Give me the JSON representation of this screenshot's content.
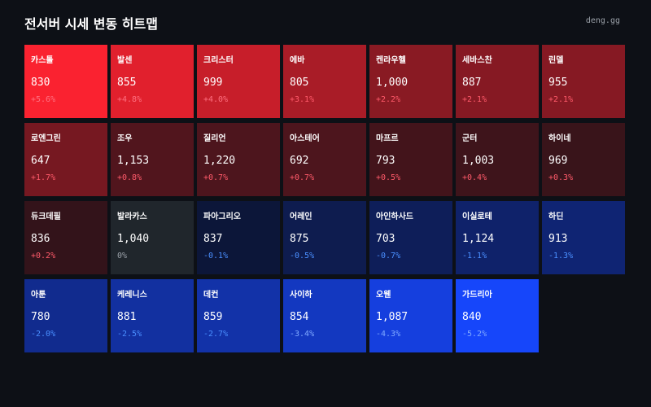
{
  "header": {
    "title": "전서버 시세 변동 히트맵",
    "brand": "deng.gg"
  },
  "colors": {
    "background": "#0d1016",
    "up_text": "#ff5a6a",
    "down_text": "#4a8fff",
    "flat_text": "#9aa0a8"
  },
  "chart_data": {
    "type": "heatmap",
    "title": "전서버 시세 변동 히트맵",
    "columns": 7,
    "cells": [
      {
        "name": "카스톨",
        "price": "830",
        "change": "+5.6%",
        "value": 5.6
      },
      {
        "name": "발센",
        "price": "855",
        "change": "+4.8%",
        "value": 4.8
      },
      {
        "name": "크리스터",
        "price": "999",
        "change": "+4.0%",
        "value": 4.0
      },
      {
        "name": "에바",
        "price": "805",
        "change": "+3.1%",
        "value": 3.1
      },
      {
        "name": "켄라우헬",
        "price": "1,000",
        "change": "+2.2%",
        "value": 2.2
      },
      {
        "name": "세바스찬",
        "price": "887",
        "change": "+2.1%",
        "value": 2.1
      },
      {
        "name": "린델",
        "price": "955",
        "change": "+2.1%",
        "value": 2.1
      },
      {
        "name": "로엔그린",
        "price": "647",
        "change": "+1.7%",
        "value": 1.7
      },
      {
        "name": "조우",
        "price": "1,153",
        "change": "+0.8%",
        "value": 0.8
      },
      {
        "name": "질리언",
        "price": "1,220",
        "change": "+0.7%",
        "value": 0.7
      },
      {
        "name": "아스테어",
        "price": "692",
        "change": "+0.7%",
        "value": 0.7
      },
      {
        "name": "마프르",
        "price": "793",
        "change": "+0.5%",
        "value": 0.5
      },
      {
        "name": "군터",
        "price": "1,003",
        "change": "+0.4%",
        "value": 0.4
      },
      {
        "name": "하이네",
        "price": "969",
        "change": "+0.3%",
        "value": 0.3
      },
      {
        "name": "듀크데필",
        "price": "836",
        "change": "+0.2%",
        "value": 0.2
      },
      {
        "name": "발라카스",
        "price": "1,040",
        "change": "0%",
        "value": 0
      },
      {
        "name": "파아그리오",
        "price": "837",
        "change": "-0.1%",
        "value": -0.1
      },
      {
        "name": "어레인",
        "price": "875",
        "change": "-0.5%",
        "value": -0.5
      },
      {
        "name": "아인하사드",
        "price": "703",
        "change": "-0.7%",
        "value": -0.7
      },
      {
        "name": "이실로테",
        "price": "1,124",
        "change": "-1.1%",
        "value": -1.1
      },
      {
        "name": "하딘",
        "price": "913",
        "change": "-1.3%",
        "value": -1.3
      },
      {
        "name": "아툰",
        "price": "780",
        "change": "-2.0%",
        "value": -2.0
      },
      {
        "name": "케레니스",
        "price": "881",
        "change": "-2.5%",
        "value": -2.5
      },
      {
        "name": "데컨",
        "price": "859",
        "change": "-2.7%",
        "value": -2.7
      },
      {
        "name": "사이하",
        "price": "854",
        "change": "-3.4%",
        "value": -3.4
      },
      {
        "name": "오웬",
        "price": "1,087",
        "change": "-4.3%",
        "value": -4.3
      },
      {
        "name": "가드리아",
        "price": "840",
        "change": "-5.2%",
        "value": -5.2
      }
    ]
  }
}
